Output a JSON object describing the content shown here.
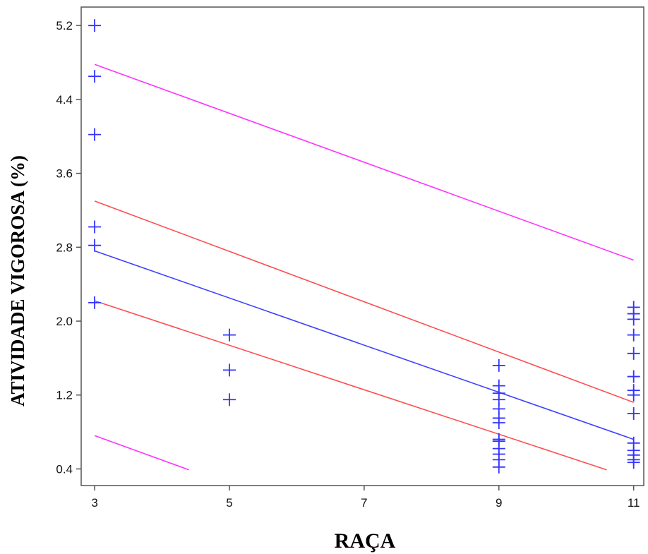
{
  "chart_data": {
    "type": "scatter",
    "xlabel": "RAÇA",
    "ylabel": "ATIVIDADE VIGOROSA (%)",
    "x_ticks": [
      "3",
      "5",
      "7",
      "9",
      "11"
    ],
    "y_ticks": [
      "0.4",
      "1.2",
      "2.0",
      "2.8",
      "3.6",
      "4.4",
      "5.2"
    ],
    "xlim": [
      2.8,
      11.15
    ],
    "ylim": [
      0.22,
      5.4
    ],
    "grid": false,
    "colors": {
      "points": "#3333ff",
      "fit": "#4040ff",
      "confidence": "#ff4d4d",
      "prediction": "#ff33ff",
      "axis": "#555555"
    },
    "points": [
      {
        "x": 3,
        "y": 5.2
      },
      {
        "x": 3,
        "y": 4.65
      },
      {
        "x": 3,
        "y": 4.02
      },
      {
        "x": 3,
        "y": 3.02
      },
      {
        "x": 3,
        "y": 2.82
      },
      {
        "x": 3,
        "y": 2.2
      },
      {
        "x": 5,
        "y": 1.85
      },
      {
        "x": 5,
        "y": 1.47
      },
      {
        "x": 5,
        "y": 1.15
      },
      {
        "x": 9,
        "y": 1.52
      },
      {
        "x": 9,
        "y": 1.3
      },
      {
        "x": 9,
        "y": 1.22
      },
      {
        "x": 9,
        "y": 1.15
      },
      {
        "x": 9,
        "y": 1.05
      },
      {
        "x": 9,
        "y": 0.95
      },
      {
        "x": 9,
        "y": 0.9
      },
      {
        "x": 9,
        "y": 0.72
      },
      {
        "x": 9,
        "y": 0.7
      },
      {
        "x": 9,
        "y": 0.62
      },
      {
        "x": 9,
        "y": 0.56
      },
      {
        "x": 9,
        "y": 0.5
      },
      {
        "x": 9,
        "y": 0.42
      },
      {
        "x": 11,
        "y": 2.15
      },
      {
        "x": 11,
        "y": 2.08
      },
      {
        "x": 11,
        "y": 2.02
      },
      {
        "x": 11,
        "y": 1.85
      },
      {
        "x": 11,
        "y": 1.65
      },
      {
        "x": 11,
        "y": 1.4
      },
      {
        "x": 11,
        "y": 1.25
      },
      {
        "x": 11,
        "y": 1.2
      },
      {
        "x": 11,
        "y": 1.0
      },
      {
        "x": 11,
        "y": 0.68
      },
      {
        "x": 11,
        "y": 0.6
      },
      {
        "x": 11,
        "y": 0.55
      },
      {
        "x": 11,
        "y": 0.5
      },
      {
        "x": 11,
        "y": 0.47
      }
    ],
    "series": [
      {
        "role": "fit",
        "values": [
          [
            3,
            2.76
          ],
          [
            11,
            0.72
          ]
        ]
      },
      {
        "role": "confidence-upper",
        "values": [
          [
            3,
            3.3
          ],
          [
            11,
            1.12
          ]
        ]
      },
      {
        "role": "confidence-lower",
        "values": [
          [
            3,
            2.22
          ],
          [
            10.6,
            0.39
          ]
        ]
      },
      {
        "role": "prediction-upper",
        "values": [
          [
            3,
            4.78
          ],
          [
            11,
            2.66
          ]
        ]
      },
      {
        "role": "prediction-lower",
        "values": [
          [
            3,
            0.76
          ],
          [
            4.4,
            0.39
          ]
        ]
      }
    ]
  }
}
